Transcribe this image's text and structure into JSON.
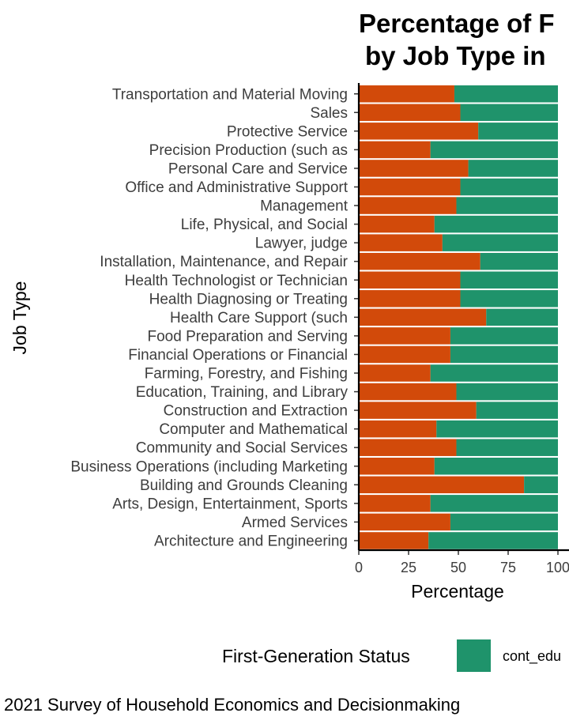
{
  "chart_data": {
    "type": "bar",
    "orientation": "horizontal",
    "stacked": true,
    "title_lines": [
      "Percentage of F",
      "by Job Type in"
    ],
    "xlabel": "Percentage",
    "ylabel": "Job Type",
    "xlim": [
      0,
      100
    ],
    "x_ticks": [
      "0",
      "25",
      "50",
      "75",
      "100"
    ],
    "grid": false,
    "legend_position": "bottom",
    "legend_title": "First-Generation Status",
    "legend_visible_entry": "cont_edu",
    "caption": "2021 Survey of Household Economics and Decisionmaking",
    "categories": [
      "Transportation and Material Moving",
      "Sales",
      "Protective Service",
      "Precision Production (such as",
      "Personal Care and Service",
      "Office and Administrative Support",
      "Management",
      "Life, Physical, and Social",
      "Lawyer, judge",
      "Installation, Maintenance, and Repair",
      "Health Technologist or Technician",
      "Health Diagnosing or Treating",
      "Health Care Support (such",
      "Food Preparation and Serving",
      "Financial Operations or Financial",
      "Farming, Forestry, and Fishing",
      "Education, Training, and Library",
      "Construction and Extraction",
      "Computer and Mathematical",
      "Community and Social Services",
      "Business Operations (including Marketing",
      "Building and Grounds Cleaning",
      "Arts, Design, Entertainment, Sports",
      "Armed Services",
      "Architecture and Engineering"
    ],
    "series": [
      {
        "color": "#d24a0a",
        "values": [
          48,
          51,
          60,
          36,
          55,
          51,
          49,
          38,
          42,
          61,
          51,
          51,
          64,
          46,
          46,
          36,
          49,
          59,
          39,
          49,
          38,
          83,
          36,
          46,
          35
        ]
      },
      {
        "name": "cont_edu",
        "color": "#1f936b",
        "values": [
          52,
          49,
          40,
          64,
          45,
          49,
          51,
          62,
          58,
          39,
          49,
          49,
          36,
          54,
          54,
          64,
          51,
          41,
          61,
          51,
          62,
          17,
          64,
          54,
          65
        ]
      }
    ]
  }
}
